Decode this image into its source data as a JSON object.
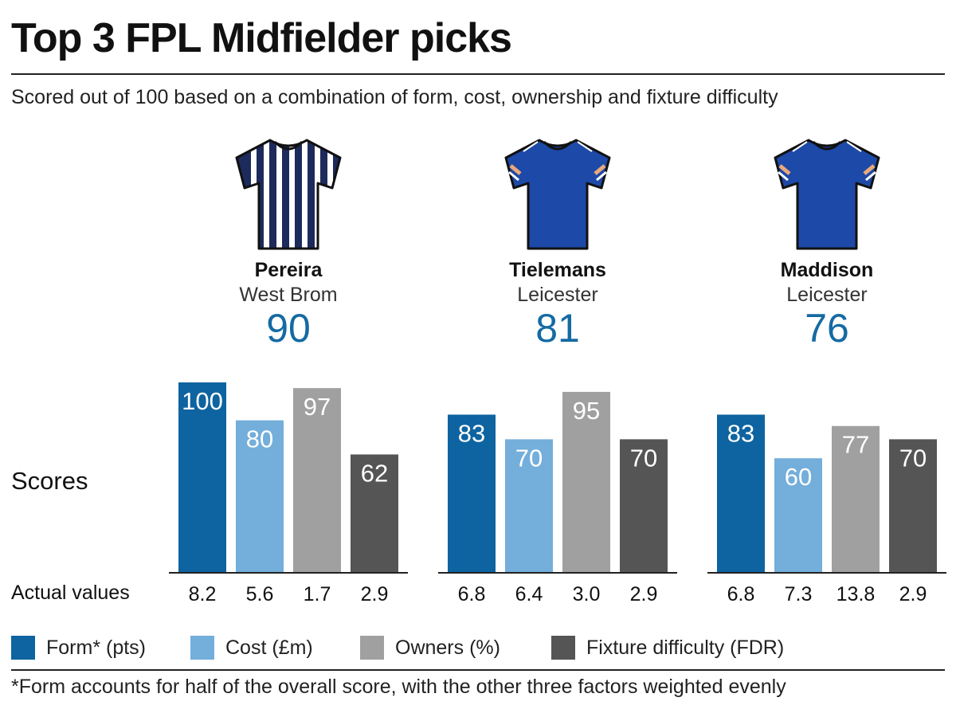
{
  "title": "Top 3 FPL Midfielder picks",
  "subtitle": "Scored out of 100 based on a combination of form, cost, ownership and fixture difficulty",
  "scores_label": "Scores",
  "actual_label": "Actual values",
  "footnote": "*Form accounts for half of the overall score, with the other three factors weighted evenly",
  "legend": [
    {
      "label": "Form* (pts)",
      "color": "#0e64a0"
    },
    {
      "label": "Cost (£m)",
      "color": "#74aedb"
    },
    {
      "label": "Owners (%)",
      "color": "#a0a0a0"
    },
    {
      "label": "Fixture difficulty (FDR)",
      "color": "#555555"
    }
  ],
  "players": [
    {
      "name": "Pereira",
      "team": "West Brom",
      "score": "90",
      "shirt": "striped"
    },
    {
      "name": "Tielemans",
      "team": "Leicester",
      "score": "81",
      "shirt": "blue"
    },
    {
      "name": "Maddison",
      "team": "Leicester",
      "score": "76",
      "shirt": "blue"
    }
  ],
  "chart_data": {
    "type": "bar",
    "categories": [
      "Form* (pts)",
      "Cost (£m)",
      "Owners (%)",
      "Fixture difficulty (FDR)"
    ],
    "ylim": [
      0,
      100
    ],
    "groups": [
      {
        "player": "Pereira",
        "scores": [
          100,
          80,
          97,
          62
        ],
        "actual": [
          "8.2",
          "5.6",
          "1.7",
          "2.9"
        ]
      },
      {
        "player": "Tielemans",
        "scores": [
          83,
          70,
          95,
          70
        ],
        "actual": [
          "6.8",
          "6.4",
          "3.0",
          "2.9"
        ]
      },
      {
        "player": "Maddison",
        "scores": [
          83,
          60,
          77,
          70
        ],
        "actual": [
          "6.8",
          "7.3",
          "13.8",
          "2.9"
        ]
      }
    ]
  }
}
